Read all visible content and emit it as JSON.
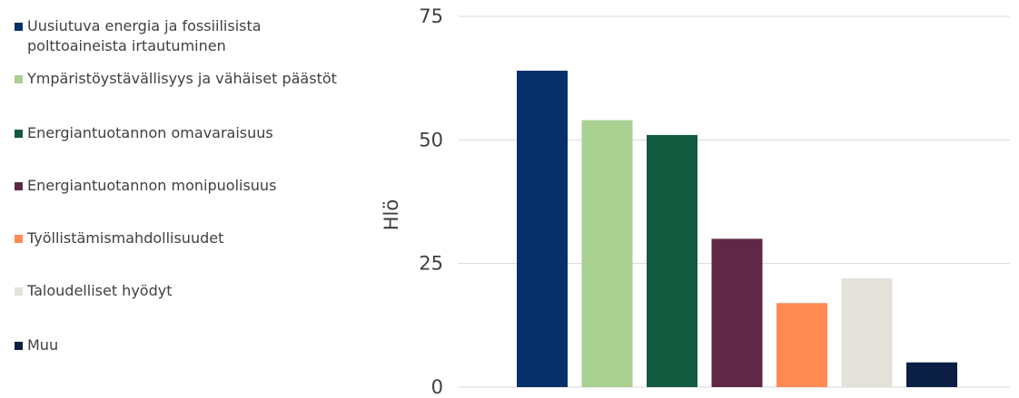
{
  "chart_data": {
    "type": "bar",
    "ylabel": "Hlö",
    "ylim": [
      0,
      75
    ],
    "yticks": [
      0,
      25,
      50,
      75
    ],
    "grid": true,
    "legend_placement": "left",
    "series": [
      {
        "name": "Uusiutuva energia ja fossiilisista polttoaineista irtautuminen",
        "value": 64,
        "color": "#06306a"
      },
      {
        "name": "Ympäristöystävällisyys ja vähäiset päästöt",
        "value": 54,
        "color": "#aad092"
      },
      {
        "name": "Energiantuotannon omavaraisuus",
        "value": 51,
        "color": "#135a40"
      },
      {
        "name": "Energiantuotannon monipuolisuus",
        "value": 30,
        "color": "#5f2845"
      },
      {
        "name": "Työllistämismahdollisuudet",
        "value": 17,
        "color": "#ff8a54"
      },
      {
        "name": "Taloudelliset hyödyt",
        "value": 22,
        "color": "#e3e1da"
      },
      {
        "name": "Muu",
        "value": 5,
        "color": "#0b1f44"
      }
    ]
  }
}
